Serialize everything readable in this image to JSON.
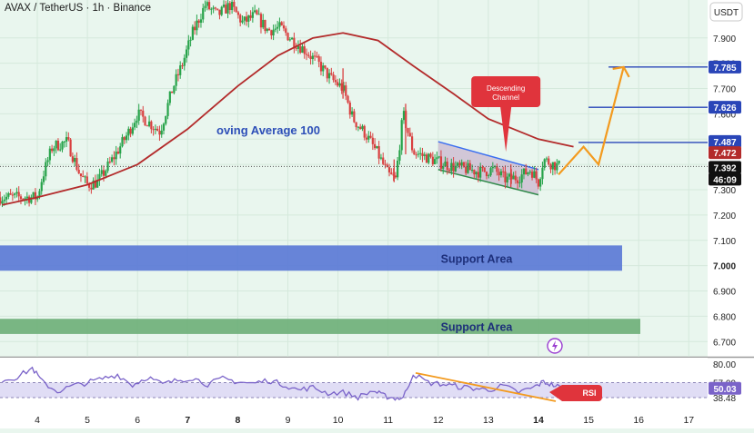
{
  "header": {
    "symbol_title": "AVAX / TetherUS · 1h · Binance",
    "currency_badge": "USDT"
  },
  "colors": {
    "background": "#e9f6ee",
    "up_candle": "#27a34a",
    "down_candle": "#d94040",
    "moving_average": "#b32b2b",
    "channel_line": "#3b6ff0",
    "channel_fill": "#c9b7cf",
    "support_blue": "#5b79d6",
    "support_green": "#6fb07a",
    "projection": "#f39a1e",
    "target_line": "#2945b8",
    "rsi_line": "#7a63c9",
    "rsi_band": "#d8d4f3",
    "callout_red": "#e0343c"
  },
  "chart_data": [
    {
      "type": "candlestick",
      "title": "AVAX / TetherUS · 1h · Binance",
      "x_axis": {
        "type": "date",
        "tick_labels": [
          "4",
          "5",
          "6",
          "7",
          "8",
          "9",
          "10",
          "11",
          "12",
          "13",
          "14",
          "15",
          "16",
          "17"
        ],
        "highlighted_tick": "14"
      },
      "y_axis": {
        "position": "right",
        "range": [
          6.64,
          8.05
        ],
        "tick_labels": [
          "7.900",
          "7.800",
          "7.700",
          "7.600",
          "7.500",
          "7.400",
          "7.300",
          "7.200",
          "7.100",
          "7.000",
          "6.900",
          "6.800",
          "6.700"
        ],
        "bold_ticks": [
          "7.000"
        ],
        "price_labels": [
          {
            "value": "7.785",
            "kind": "target",
            "color": "#2945b8"
          },
          {
            "value": "7.626",
            "kind": "target",
            "color": "#2945b8"
          },
          {
            "value": "7.487",
            "kind": "target",
            "color": "#2945b8"
          },
          {
            "value": "7.472",
            "kind": "moving-average",
            "color": "#b32b2b"
          },
          {
            "value": "7.392",
            "kind": "last-price",
            "color": "#111111"
          },
          {
            "value": "46:09",
            "kind": "countdown",
            "color": "#111111"
          }
        ]
      },
      "price_path": [
        [
          4.0,
          7.27
        ],
        [
          4.1,
          7.35
        ],
        [
          4.3,
          7.47
        ],
        [
          4.6,
          7.49
        ],
        [
          4.85,
          7.36
        ],
        [
          5.0,
          7.32
        ],
        [
          5.2,
          7.33
        ],
        [
          5.5,
          7.42
        ],
        [
          5.8,
          7.52
        ],
        [
          6.0,
          7.6
        ],
        [
          6.2,
          7.57
        ],
        [
          6.45,
          7.53
        ],
        [
          6.7,
          7.7
        ],
        [
          6.9,
          7.8
        ],
        [
          7.1,
          7.92
        ],
        [
          7.35,
          8.03
        ],
        [
          7.6,
          7.99
        ],
        [
          7.85,
          8.03
        ],
        [
          8.1,
          7.96
        ],
        [
          8.35,
          7.99
        ],
        [
          8.6,
          7.93
        ],
        [
          8.85,
          7.94
        ],
        [
          9.1,
          7.89
        ],
        [
          9.35,
          7.85
        ],
        [
          9.6,
          7.8
        ],
        [
          9.85,
          7.74
        ],
        [
          10.1,
          7.7
        ],
        [
          10.3,
          7.58
        ],
        [
          10.55,
          7.52
        ],
        [
          10.8,
          7.44
        ],
        [
          11.0,
          7.36
        ],
        [
          11.15,
          7.34
        ],
        [
          11.3,
          7.6
        ],
        [
          11.5,
          7.45
        ],
        [
          11.75,
          7.43
        ],
        [
          12.0,
          7.41
        ],
        [
          12.3,
          7.39
        ],
        [
          12.6,
          7.38
        ],
        [
          12.85,
          7.37
        ],
        [
          13.1,
          7.38
        ],
        [
          13.35,
          7.34
        ],
        [
          13.6,
          7.35
        ],
        [
          13.85,
          7.38
        ],
        [
          14.0,
          7.33
        ],
        [
          14.1,
          7.42
        ],
        [
          14.3,
          7.4
        ],
        [
          14.45,
          7.39
        ]
      ],
      "series": [
        {
          "name": "oving Average 100",
          "type": "line",
          "points": [
            [
              3.3,
              7.24
            ],
            [
              4.0,
              7.27
            ],
            [
              5.0,
              7.32
            ],
            [
              6.0,
              7.4
            ],
            [
              7.0,
              7.54
            ],
            [
              8.0,
              7.71
            ],
            [
              8.8,
              7.83
            ],
            [
              9.5,
              7.9
            ],
            [
              10.1,
              7.92
            ],
            [
              10.8,
              7.89
            ],
            [
              11.5,
              7.79
            ],
            [
              12.3,
              7.68
            ],
            [
              13.0,
              7.58
            ],
            [
              14.0,
              7.5
            ],
            [
              14.7,
              7.47
            ]
          ]
        },
        {
          "name": "RSI",
          "type": "line",
          "range": [
            25,
            88
          ],
          "tick_labels": [
            "80.00",
            "57.09",
            "50.03",
            "38.48"
          ],
          "points": [
            [
              3.3,
              60
            ],
            [
              3.6,
              64
            ],
            [
              3.9,
              75
            ],
            [
              4.1,
              58
            ],
            [
              4.4,
              46
            ],
            [
              4.7,
              53
            ],
            [
              5.0,
              57
            ],
            [
              5.3,
              62
            ],
            [
              5.6,
              67
            ],
            [
              5.9,
              54
            ],
            [
              6.2,
              64
            ],
            [
              6.5,
              55
            ],
            [
              6.8,
              60
            ],
            [
              7.1,
              63
            ],
            [
              7.4,
              55
            ],
            [
              7.7,
              62
            ],
            [
              8.0,
              58
            ],
            [
              8.3,
              56
            ],
            [
              8.6,
              60
            ],
            [
              8.9,
              55
            ],
            [
              9.2,
              48
            ],
            [
              9.5,
              51
            ],
            [
              9.8,
              44
            ],
            [
              10.1,
              45
            ],
            [
              10.4,
              39
            ],
            [
              10.7,
              47
            ],
            [
              10.9,
              41
            ],
            [
              11.1,
              38
            ],
            [
              11.3,
              38
            ],
            [
              11.5,
              68
            ],
            [
              11.8,
              57
            ],
            [
              12.1,
              55
            ],
            [
              12.4,
              52
            ],
            [
              12.7,
              50
            ],
            [
              13.0,
              48
            ],
            [
              13.3,
              53
            ],
            [
              13.6,
              45
            ],
            [
              13.9,
              51
            ],
            [
              14.1,
              58
            ],
            [
              14.3,
              54
            ],
            [
              14.5,
              50
            ]
          ]
        }
      ],
      "annotations": {
        "ma_label": "oving Average 100",
        "channel_callout": [
          "Descending",
          "Channel"
        ],
        "support_1": {
          "label": "Support Area",
          "range": [
            6.98,
            7.08
          ]
        },
        "support_2": {
          "label": "Support Area",
          "range": [
            6.73,
            6.79
          ]
        },
        "descending_channel": {
          "upper": [
            [
              12.0,
              7.49
            ],
            [
              14.0,
              7.38
            ]
          ],
          "lower": [
            [
              12.0,
              7.38
            ],
            [
              14.0,
              7.28
            ]
          ]
        },
        "projection_path": [
          [
            14.4,
            7.36
          ],
          [
            14.9,
            7.47
          ],
          [
            15.2,
            7.4
          ],
          [
            15.7,
            7.785
          ]
        ],
        "target_lines": [
          {
            "value": 7.785,
            "from": 15.4
          },
          {
            "value": 7.626,
            "from": 15.0
          },
          {
            "value": 7.487,
            "from": 14.8
          }
        ],
        "rsi_trendline": [
          [
            11.55,
            69
          ],
          [
            14.2,
            43
          ]
        ],
        "rsi_callout": "RSI"
      }
    }
  ]
}
